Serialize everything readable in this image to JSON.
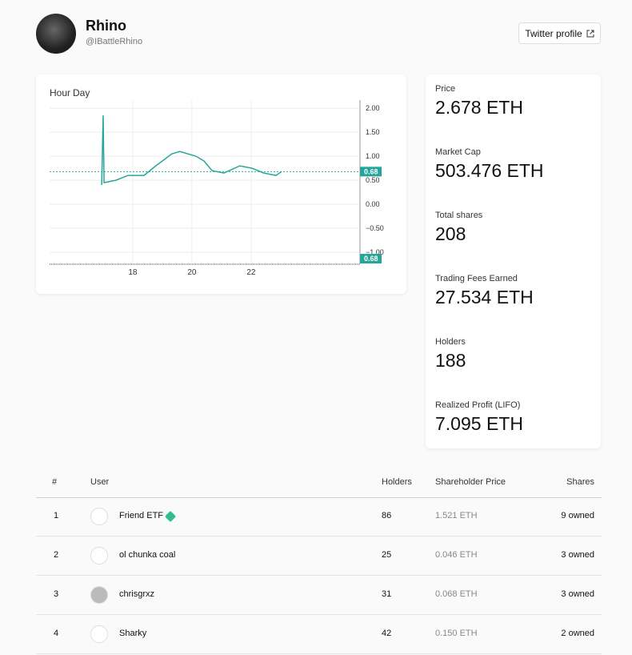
{
  "profile": {
    "name": "Rhino",
    "handle": "@IBattleRhino",
    "button": "Twitter profile"
  },
  "stats": [
    {
      "label": "Price",
      "value": "2.678 ETH"
    },
    {
      "label": "Market Cap",
      "value": "503.476 ETH"
    },
    {
      "label": "Total shares",
      "value": "208"
    },
    {
      "label": "Trading Fees Earned",
      "value": "27.534 ETH"
    },
    {
      "label": "Holders",
      "value": "188"
    },
    {
      "label": "Realized Profit (LIFO)",
      "value": "7.095 ETH"
    }
  ],
  "table": {
    "columns": [
      "#",
      "User",
      "Holders",
      "Shareholder Price",
      "Shares"
    ],
    "rows": [
      [
        "1",
        "Friend ETF",
        "86",
        "1.521 ETH",
        "9 owned"
      ],
      [
        "2",
        "ol chunka coal",
        "25",
        "0.046 ETH",
        "3 owned"
      ],
      [
        "3",
        "chrisgrxz",
        "31",
        "0.068 ETH",
        "3 owned"
      ],
      [
        "4",
        "Sharky",
        "42",
        "0.150 ETH",
        "2 owned"
      ]
    ]
  },
  "chart_data": {
    "type": "line",
    "intervals": [
      "Hour",
      "Day"
    ],
    "x": [
      16.95,
      17.0,
      17.03,
      17.43,
      17.84,
      18.38,
      18.78,
      19.32,
      19.59,
      20.14,
      20.41,
      20.68,
      21.08,
      21.62,
      22.03,
      22.43,
      22.84,
      23.03
    ],
    "series": [
      {
        "color": "#26a69a",
        "values": [
          0.4,
          1.85,
          0.45,
          0.5,
          0.6,
          0.6,
          0.8,
          1.05,
          1.1,
          1.0,
          0.9,
          0.7,
          0.65,
          0.8,
          0.75,
          0.65,
          0.6,
          0.68
        ]
      }
    ],
    "xlim": [
      15.19,
      25.68
    ],
    "xticks": [
      18,
      20,
      22
    ],
    "ylim": [
      -1.25,
      2.17
    ],
    "yticks": [
      {
        "value": 2,
        "label": "2.00"
      },
      {
        "value": 1.5,
        "label": "1.50"
      },
      {
        "value": 1,
        "label": "1.00"
      },
      {
        "value": 0.5,
        "label": "0.50"
      },
      {
        "value": 0,
        "label": "0.00"
      },
      {
        "value": -0.5,
        "label": "−0.50"
      },
      {
        "value": -1,
        "label": "−1.00"
      }
    ],
    "price_labels": [
      {
        "value": 0.68,
        "label": "0.68"
      },
      {
        "value": 0.68,
        "label": "0.68"
      }
    ],
    "grid": true
  }
}
